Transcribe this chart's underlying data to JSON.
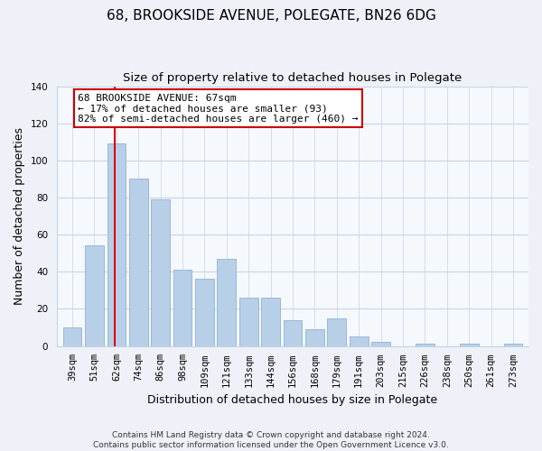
{
  "title": "68, BROOKSIDE AVENUE, POLEGATE, BN26 6DG",
  "subtitle": "Size of property relative to detached houses in Polegate",
  "xlabel": "Distribution of detached houses by size in Polegate",
  "ylabel": "Number of detached properties",
  "categories": [
    "39sqm",
    "51sqm",
    "62sqm",
    "74sqm",
    "86sqm",
    "98sqm",
    "109sqm",
    "121sqm",
    "133sqm",
    "144sqm",
    "156sqm",
    "168sqm",
    "179sqm",
    "191sqm",
    "203sqm",
    "215sqm",
    "226sqm",
    "238sqm",
    "250sqm",
    "261sqm",
    "273sqm"
  ],
  "values": [
    10,
    54,
    109,
    90,
    79,
    41,
    36,
    47,
    26,
    26,
    14,
    9,
    15,
    5,
    2,
    0,
    1,
    0,
    1,
    0,
    1
  ],
  "bar_color": "#b8cfe8",
  "bar_edge_color": "#9ab8d8",
  "vline_x_index": 2,
  "vline_color": "#dd0000",
  "annotation_line1": "68 BROOKSIDE AVENUE: 67sqm",
  "annotation_line2": "← 17% of detached houses are smaller (93)",
  "annotation_line3": "82% of semi-detached houses are larger (460) →",
  "annotation_box_color": "#ffffff",
  "annotation_box_edge": "#cc0000",
  "ylim": [
    0,
    140
  ],
  "yticks": [
    0,
    20,
    40,
    60,
    80,
    100,
    120,
    140
  ],
  "footer_text": "Contains HM Land Registry data © Crown copyright and database right 2024.\nContains public sector information licensed under the Open Government Licence v3.0.",
  "bg_color": "#eef2f8",
  "plot_bg_color": "#f5f8fd",
  "grid_color": "#c8d4e4",
  "title_fontsize": 11,
  "subtitle_fontsize": 9.5,
  "tick_fontsize": 7.5,
  "axis_label_fontsize": 9,
  "footer_fontsize": 6.5
}
